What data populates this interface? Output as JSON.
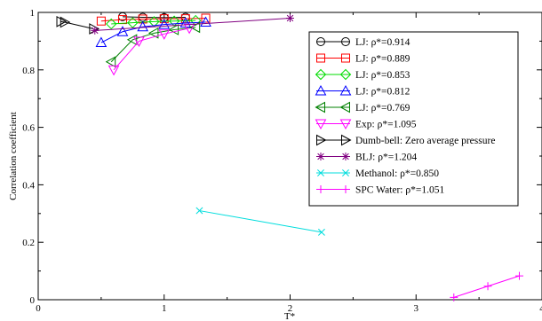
{
  "chart_data": {
    "type": "scatter",
    "xlabel": "T*",
    "ylabel": "Correlation coefficient",
    "xlim": [
      0,
      4
    ],
    "ylim": [
      0,
      1
    ],
    "x_ticks": [
      0,
      1,
      2,
      3,
      4
    ],
    "y_ticks": [
      0,
      0.2,
      0.4,
      0.6,
      0.8,
      1
    ],
    "x_tick_labels": [
      "0",
      "1",
      "2",
      "3",
      "4"
    ],
    "y_tick_labels": [
      "0",
      "0.2",
      "0.4",
      "0.6",
      "0.8",
      "1"
    ],
    "grid": false,
    "legend_position": "right",
    "series": [
      {
        "name": "LJ: ρ*=0.914",
        "marker": "circle",
        "color": "#000000",
        "x": [
          0.67,
          0.83,
          1.0,
          1.17
        ],
        "y": [
          0.985,
          0.983,
          0.982,
          0.983
        ]
      },
      {
        "name": "LJ: ρ*=0.889",
        "marker": "square",
        "color": "#ff0000",
        "x": [
          0.5,
          0.67,
          0.83,
          1.0,
          1.17,
          1.33
        ],
        "y": [
          0.97,
          0.975,
          0.977,
          0.978,
          0.978,
          0.98
        ]
      },
      {
        "name": "LJ: ρ*=0.853",
        "marker": "diamond",
        "color": "#00dd00",
        "x": [
          0.58,
          0.75,
          0.92,
          1.08,
          1.25
        ],
        "y": [
          0.96,
          0.964,
          0.968,
          0.97,
          0.972
        ]
      },
      {
        "name": "LJ: ρ*=0.812",
        "marker": "triangle-up",
        "color": "#0000ff",
        "x": [
          0.5,
          0.67,
          0.83,
          1.0,
          1.17,
          1.33
        ],
        "y": [
          0.895,
          0.933,
          0.95,
          0.958,
          0.963,
          0.966
        ]
      },
      {
        "name": "LJ: ρ*=0.769",
        "marker": "triangle-left",
        "color": "#008000",
        "x": [
          0.58,
          0.75,
          0.92,
          1.08,
          1.25
        ],
        "y": [
          0.828,
          0.905,
          0.928,
          0.94,
          0.948
        ]
      },
      {
        "name": "Exp: ρ*=1.095",
        "marker": "triangle-down",
        "color": "#ff00ff",
        "x": [
          0.6,
          0.8,
          1.0,
          1.2
        ],
        "y": [
          0.8,
          0.9,
          0.925,
          0.945
        ]
      },
      {
        "name": "Dumb-bell: Zero average pressure",
        "marker": "triangle-right",
        "color": "#000000",
        "x": [
          0.18,
          0.21,
          0.44
        ],
        "y": [
          0.968,
          0.966,
          0.943
        ]
      },
      {
        "name": "BLJ:  ρ*=1.204",
        "marker": "star",
        "color": "#800080",
        "x": [
          0.45,
          2.0
        ],
        "y": [
          0.937,
          0.98
        ]
      },
      {
        "name": "Methanol:  ρ*=0.850",
        "marker": "x",
        "color": "#00dddd",
        "x": [
          1.28,
          2.25
        ],
        "y": [
          0.31,
          0.235
        ]
      },
      {
        "name": "SPC Water: ρ*=1.051",
        "marker": "plus",
        "color": "#ff00ff",
        "x": [
          3.3,
          3.57,
          3.82
        ],
        "y": [
          0.008,
          0.047,
          0.083
        ]
      }
    ]
  }
}
